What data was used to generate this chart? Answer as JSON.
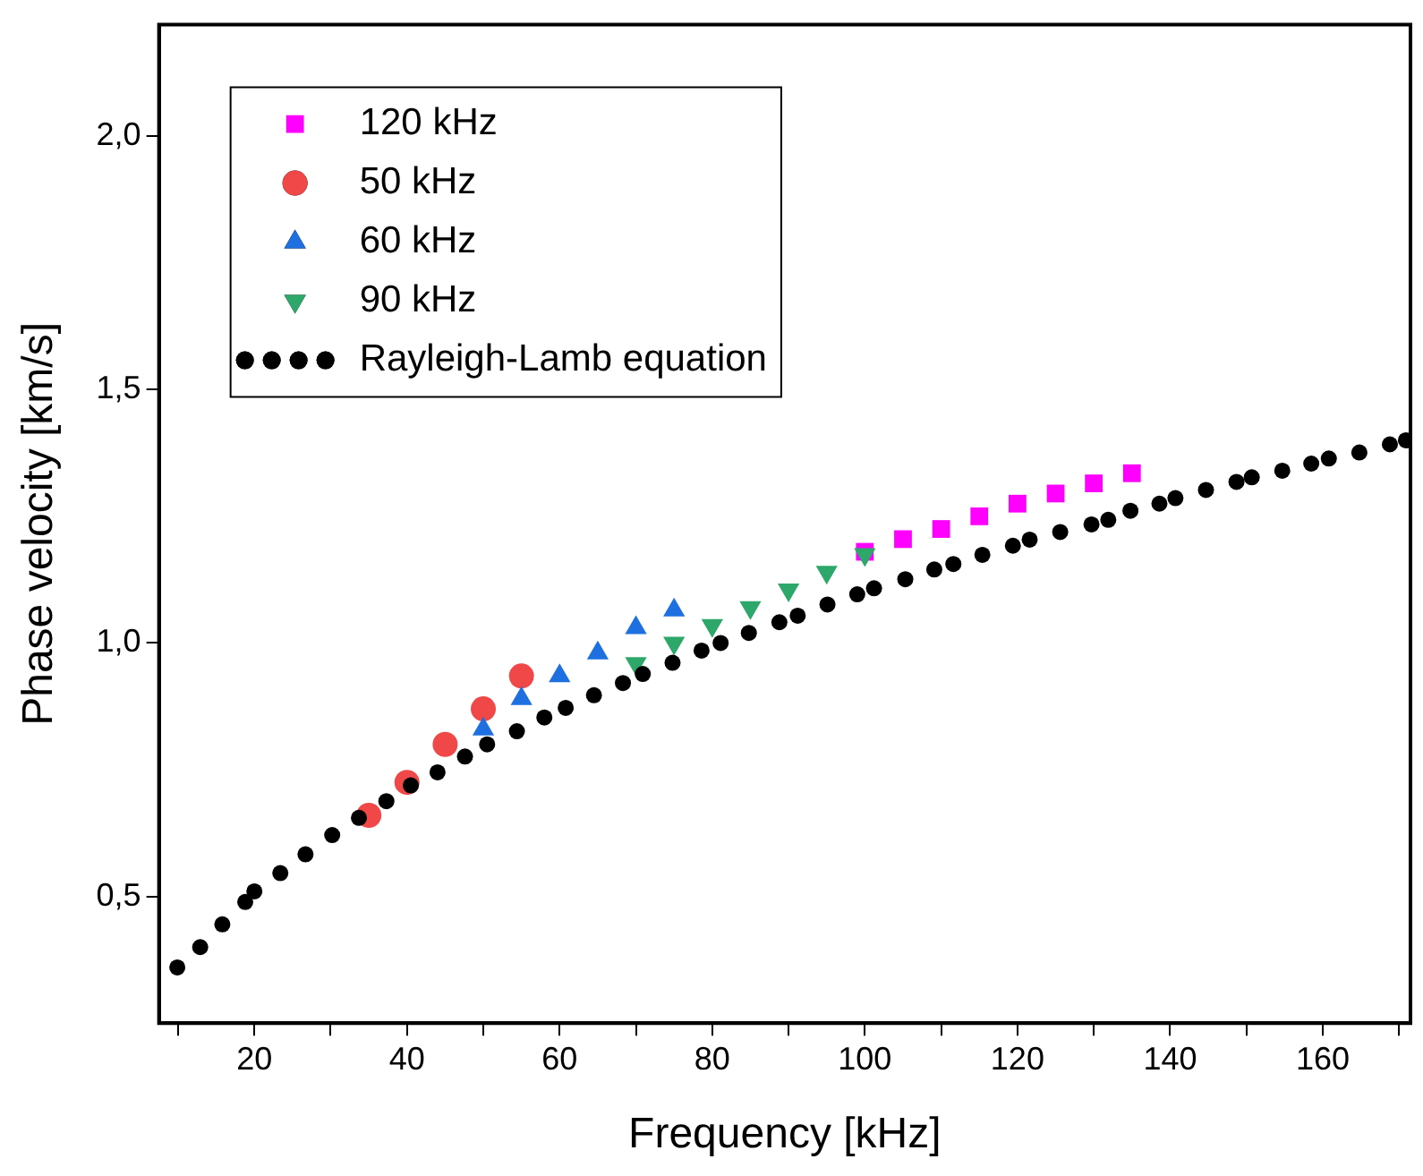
{
  "chart_data": {
    "type": "scatter",
    "xlabel": "Frequency [kHz]",
    "ylabel": "Phase velocity [km/s]",
    "xlim": [
      7.5,
      171.5
    ],
    "ylim": [
      0.25,
      2.22
    ],
    "xticks": [
      {
        "value": 10,
        "label": null
      },
      20,
      {
        "value": 30,
        "label": null
      },
      40,
      {
        "value": 50,
        "label": null
      },
      60,
      {
        "value": 70,
        "label": null
      },
      80,
      {
        "value": 90,
        "label": null
      },
      100,
      {
        "value": 110,
        "label": null
      },
      120,
      {
        "value": 130,
        "label": null
      },
      140,
      {
        "value": 150,
        "label": null
      },
      160,
      {
        "value": 170,
        "label": null
      }
    ],
    "yticks": [
      {
        "value": 0.5,
        "label": "0,5"
      },
      {
        "value": 1.0,
        "label": "1,0"
      },
      {
        "value": 1.5,
        "label": "1,5"
      },
      {
        "value": 2.0,
        "label": "2,0"
      }
    ],
    "grid": false,
    "legend": "top left",
    "series": [
      {
        "name": "120 kHz",
        "color": "#ff00ff",
        "marker": "square",
        "x": [
          100,
          105,
          110,
          115,
          120,
          125,
          130,
          135
        ],
        "values": [
          1.18,
          1.205,
          1.225,
          1.25,
          1.275,
          1.295,
          1.315,
          1.335
        ]
      },
      {
        "name": "50 kHz",
        "color": "#f04848",
        "marker": "circle",
        "x": [
          35,
          40,
          45,
          50,
          55
        ],
        "values": [
          0.66,
          0.725,
          0.8,
          0.87,
          0.935
        ]
      },
      {
        "name": "60 kHz",
        "color": "#1e6fe0",
        "marker": "triangle",
        "x": [
          50,
          55,
          60,
          65,
          70,
          75
        ],
        "values": [
          0.83,
          0.89,
          0.935,
          0.98,
          1.03,
          1.065
        ]
      },
      {
        "name": "90 kHz",
        "color": "#2ea86a",
        "marker": "triangle-down",
        "x": [
          70,
          75,
          80,
          85,
          90,
          95,
          100
        ],
        "values": [
          0.96,
          1.0,
          1.035,
          1.07,
          1.105,
          1.14,
          1.175
        ]
      },
      {
        "name": "Rayleigh-Lamb equation",
        "color": "#000000",
        "marker": "circle",
        "x": [
          9.9,
          12.9,
          15.8,
          18.8,
          20.0,
          23.4,
          26.7,
          30.2,
          33.7,
          37.3,
          40.5,
          44.0,
          47.6,
          50.5,
          54.4,
          58.0,
          60.8,
          64.5,
          68.3,
          70.9,
          74.8,
          78.6,
          81.1,
          84.8,
          88.8,
          91.2,
          95.1,
          99.0,
          101.2,
          105.3,
          109.1,
          111.6,
          115.4,
          119.4,
          121.6,
          125.6,
          129.7,
          131.9,
          134.8,
          138.6,
          140.7,
          144.7,
          148.7,
          150.7,
          154.7,
          158.5,
          160.8,
          164.8,
          168.8,
          170.9
        ],
        "values": [
          0.36,
          0.4,
          0.445,
          0.489,
          0.51,
          0.546,
          0.583,
          0.621,
          0.655,
          0.688,
          0.719,
          0.745,
          0.776,
          0.8,
          0.826,
          0.853,
          0.872,
          0.897,
          0.921,
          0.939,
          0.961,
          0.985,
          1.0,
          1.02,
          1.041,
          1.054,
          1.076,
          1.096,
          1.108,
          1.126,
          1.145,
          1.156,
          1.174,
          1.192,
          1.204,
          1.219,
          1.234,
          1.243,
          1.261,
          1.275,
          1.286,
          1.302,
          1.318,
          1.327,
          1.34,
          1.354,
          1.364,
          1.376,
          1.392,
          1.4
        ]
      }
    ]
  }
}
